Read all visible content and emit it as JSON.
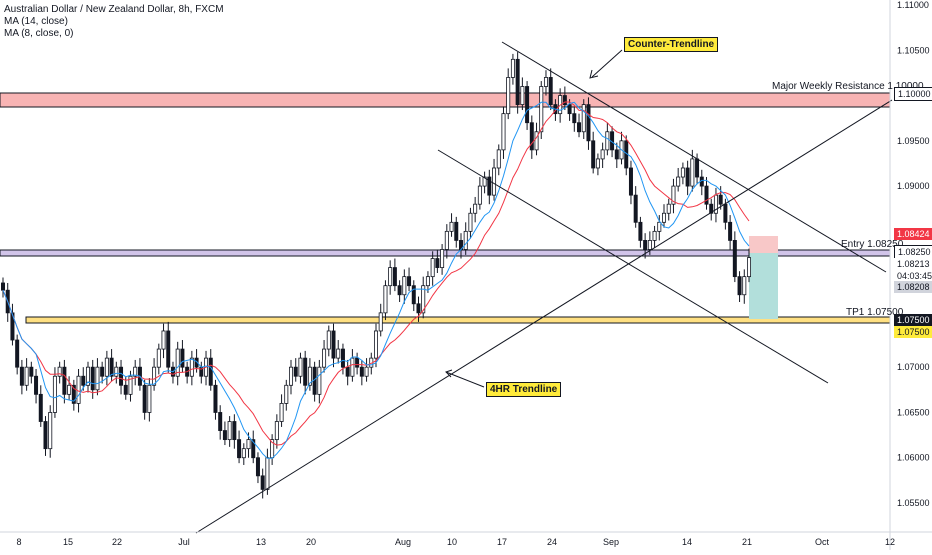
{
  "legend": {
    "title": "Australian Dollar / New Zealand Dollar, 8h, FXCM",
    "ma14": "MA (14, close)",
    "ma8": "MA (8, close, 0)"
  },
  "annotations": {
    "counter_trendline": "Counter-Trendline",
    "hr4_trendline": "4HR Trendline",
    "major_resistance": "Major Weekly Resistance 1.10000",
    "entry": "Entry 1.08250",
    "tp1": "TP1 1.07500"
  },
  "price_tags": {
    "resistance": "1.10000",
    "ma_upper": "1.08424",
    "entry": "1.08250",
    "last": "1.08213",
    "countdown": "04:03:45",
    "ma_lower": "1.08208",
    "tp1_a": "1.07500",
    "tp1_b": "1.07500"
  },
  "colors": {
    "up": "#131722",
    "down": "#131722",
    "ma14": "#f23645",
    "ma8": "#2196f3",
    "resistance_zone": "#f8b4b4",
    "entry_zone": "#b39ddb",
    "tp_zone": "#ffe082",
    "risk_box": "#f8c8c8",
    "reward_box": "#b2dfdb",
    "callout_bg": "#ffeb3b"
  },
  "chart_data": {
    "type": "candlestick",
    "title": "Australian Dollar / New Zealand Dollar, 8h, FXCM",
    "x_tick_labels": [
      "8",
      "15",
      "22",
      "Jul",
      "13",
      "20",
      "Aug",
      "10",
      "17",
      "24",
      "Sep",
      "14",
      "21",
      "Oct",
      "12"
    ],
    "y_tick_labels": [
      "1.11000",
      "1.10500",
      "1.10000",
      "1.09500",
      "1.09000",
      "1.08500",
      "1.08000",
      "1.07500",
      "1.07000",
      "1.06500",
      "1.06000",
      "1.05500"
    ],
    "ylim": [
      1.0515,
      1.1115
    ],
    "close_path": [
      1.0785,
      1.076,
      1.073,
      1.07,
      1.068,
      1.07,
      1.069,
      1.067,
      1.064,
      1.061,
      1.065,
      1.069,
      1.07,
      1.067,
      1.068,
      1.066,
      1.069,
      1.068,
      1.07,
      1.0675,
      1.07,
      1.069,
      1.071,
      1.069,
      1.07,
      1.068,
      1.067,
      1.069,
      1.07,
      1.068,
      1.065,
      1.068,
      1.07,
      1.072,
      1.074,
      1.07,
      1.069,
      1.072,
      1.07,
      1.069,
      1.071,
      1.07,
      1.069,
      1.071,
      1.068,
      1.065,
      1.063,
      1.062,
      1.064,
      1.062,
      1.06,
      1.061,
      1.062,
      1.06,
      1.058,
      1.0565,
      1.06,
      1.062,
      1.064,
      1.066,
      1.068,
      1.07,
      1.069,
      1.071,
      1.068,
      1.07,
      1.067,
      1.07,
      1.072,
      1.074,
      1.071,
      1.072,
      1.07,
      1.069,
      1.071,
      1.07,
      1.069,
      1.07,
      1.071,
      1.074,
      1.076,
      1.079,
      1.081,
      1.079,
      1.078,
      1.08,
      1.079,
      1.077,
      1.076,
      1.079,
      1.08,
      1.082,
      1.081,
      1.083,
      1.085,
      1.086,
      1.084,
      1.083,
      1.085,
      1.087,
      1.088,
      1.09,
      1.091,
      1.089,
      1.092,
      1.094,
      1.098,
      1.102,
      1.104,
      1.099,
      1.101,
      1.097,
      1.094,
      1.096,
      1.101,
      1.102,
      1.099,
      1.098,
      1.1,
      1.099,
      1.098,
      1.097,
      1.096,
      1.099,
      1.095,
      1.092,
      1.093,
      1.094,
      1.096,
      1.094,
      1.093,
      1.095,
      1.092,
      1.089,
      1.086,
      1.084,
      1.083,
      1.084,
      1.085,
      1.086,
      1.087,
      1.088,
      1.09,
      1.091,
      1.092,
      1.09,
      1.093,
      1.091,
      1.09,
      1.088,
      1.087,
      1.089,
      1.088,
      1.086,
      1.084,
      1.08,
      1.078,
      1.08,
      1.0821
    ],
    "series": [
      {
        "name": "MA (14, close)",
        "color": "#f23645"
      },
      {
        "name": "MA (8, close, 0)",
        "color": "#2196f3"
      }
    ],
    "levels": [
      {
        "label": "Major Weekly Resistance 1.10000",
        "value": 1.1
      },
      {
        "label": "Entry 1.08250",
        "value": 1.0825
      },
      {
        "label": "TP1 1.07500",
        "value": 1.075
      }
    ],
    "grid": false,
    "legend_position": "top-left"
  }
}
